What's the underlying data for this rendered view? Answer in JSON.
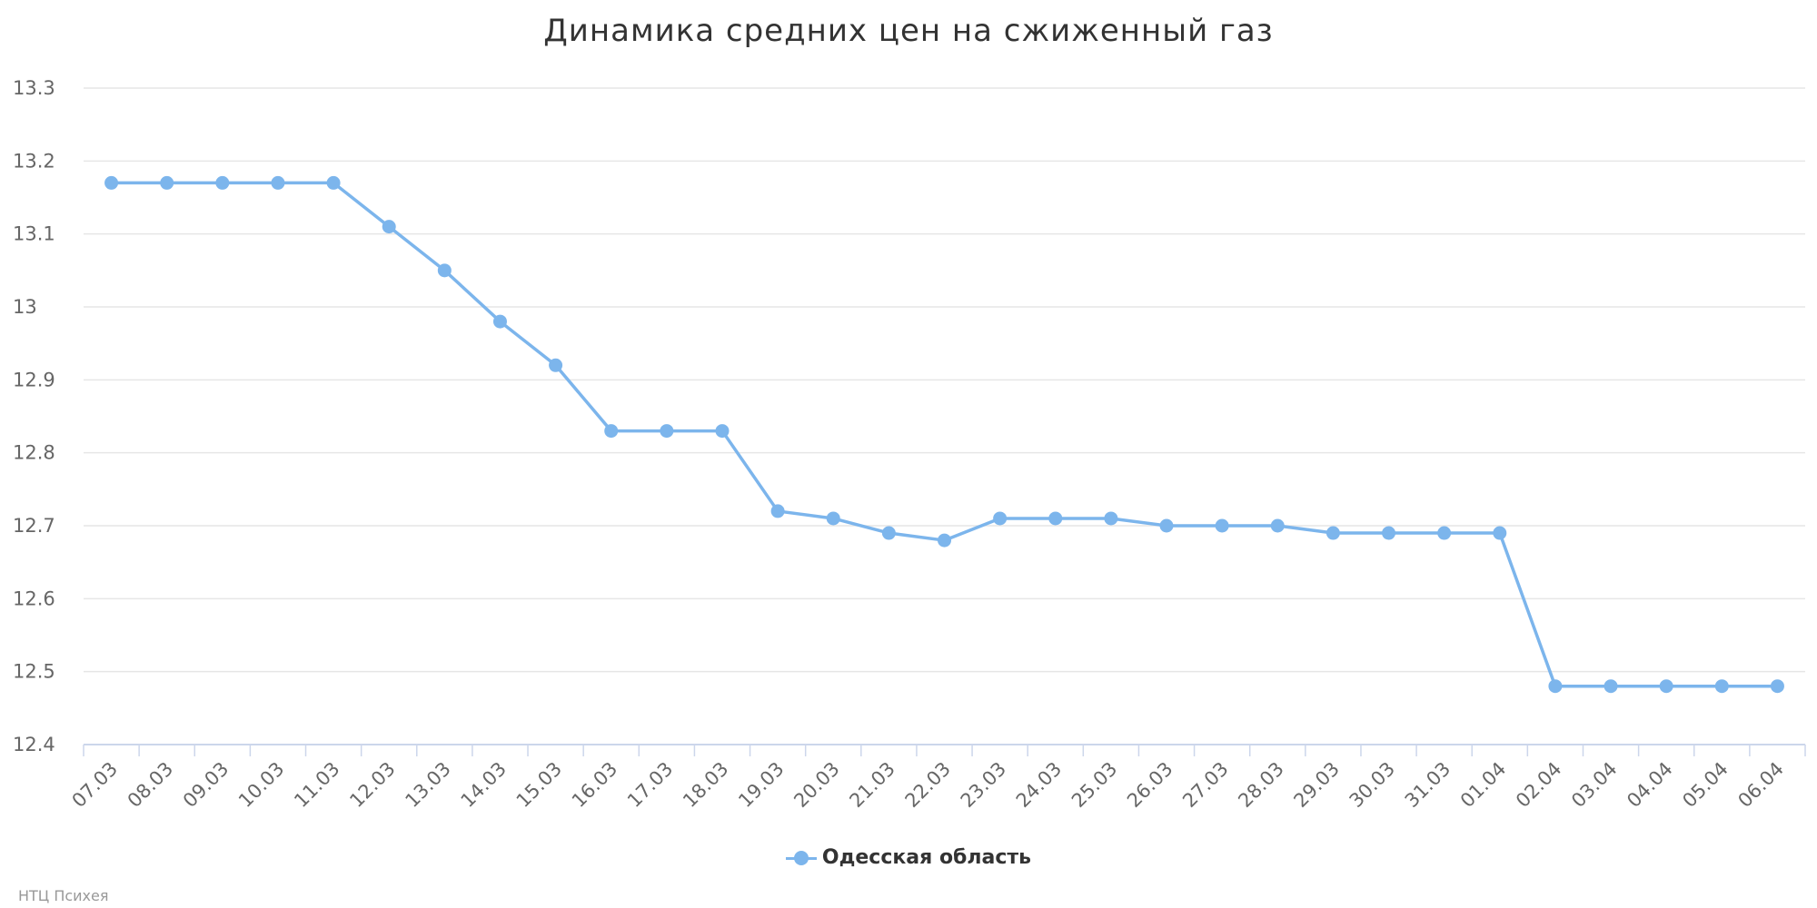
{
  "chart_data": {
    "type": "line",
    "title": "Динамика средних цен на сжиженный газ",
    "xlabel": "",
    "ylabel": "",
    "categories": [
      "07.03",
      "08.03",
      "09.03",
      "10.03",
      "11.03",
      "12.03",
      "13.03",
      "14.03",
      "15.03",
      "16.03",
      "17.03",
      "18.03",
      "19.03",
      "20.03",
      "21.03",
      "22.03",
      "23.03",
      "24.03",
      "25.03",
      "26.03",
      "27.03",
      "28.03",
      "29.03",
      "30.03",
      "31.03",
      "01.04",
      "02.04",
      "03.04",
      "04.04",
      "05.04",
      "06.04"
    ],
    "series": [
      {
        "name": "Одесская область",
        "color": "#7cb5ec",
        "values": [
          13.17,
          13.17,
          13.17,
          13.17,
          13.17,
          13.11,
          13.05,
          12.98,
          12.92,
          12.83,
          12.83,
          12.83,
          12.72,
          12.71,
          12.69,
          12.68,
          12.71,
          12.71,
          12.71,
          12.7,
          12.7,
          12.7,
          12.69,
          12.69,
          12.69,
          12.69,
          12.48,
          12.48,
          12.48,
          12.48,
          12.48
        ]
      }
    ],
    "ylim": [
      12.4,
      13.3
    ],
    "yticks": [
      "12.4",
      "12.5",
      "12.6",
      "12.7",
      "12.8",
      "12.9",
      "13",
      "13.1",
      "13.2",
      "13.3"
    ],
    "grid": true,
    "legend": "bottom-center"
  },
  "credits": "НТЦ Психея"
}
